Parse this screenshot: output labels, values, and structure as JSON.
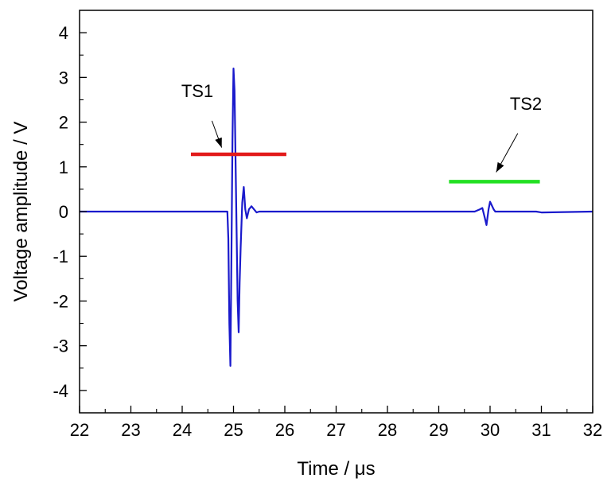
{
  "chart_data": {
    "type": "line",
    "title": "",
    "xlabel": "Time / μs",
    "ylabel": "Voltage amplitude / V",
    "xlim": [
      22,
      32
    ],
    "ylim": [
      -4.5,
      4.5
    ],
    "x_ticks": [
      "22",
      "23",
      "24",
      "25",
      "26",
      "27",
      "28",
      "29",
      "30",
      "31",
      "32"
    ],
    "y_ticks": [
      "-4",
      "-3",
      "-2",
      "-1",
      "0",
      "1",
      "2",
      "3",
      "4"
    ],
    "grid": false,
    "legend": "none",
    "series": [
      {
        "color": "#1a1acc",
        "x": [
          22.0,
          24.88,
          24.9,
          24.92,
          24.94,
          24.96,
          24.98,
          25.0,
          25.02,
          25.05,
          25.08,
          25.1,
          25.12,
          25.14,
          25.17,
          25.2,
          25.23,
          25.26,
          25.3,
          25.35,
          25.4,
          25.45,
          25.5,
          26.0,
          29.7,
          29.8,
          29.85,
          29.9,
          29.93,
          29.97,
          30.0,
          30.03,
          30.07,
          30.1,
          30.2,
          30.9,
          31.0,
          32.0
        ],
        "y": [
          0.0,
          0.0,
          -0.6,
          -2.5,
          -3.45,
          -1.0,
          1.6,
          3.2,
          2.7,
          0.4,
          -2.0,
          -2.7,
          -1.6,
          -0.8,
          0.2,
          0.55,
          0.05,
          -0.15,
          0.05,
          0.12,
          0.05,
          -0.02,
          0.0,
          0.0,
          0.0,
          0.05,
          0.08,
          -0.15,
          -0.3,
          0.05,
          0.22,
          0.15,
          0.05,
          0.0,
          0.0,
          0.0,
          -0.02,
          0.0
        ]
      }
    ],
    "annotations": [
      {
        "label": "TS1",
        "color": "#e21a1a",
        "bar": {
          "x": [
            24.17,
            26.03
          ],
          "y": 1.28
        },
        "arrow": {
          "from": [
            24.58,
            2.03
          ],
          "to": [
            24.77,
            1.43
          ]
        }
      },
      {
        "label": "TS2",
        "color": "#22e022",
        "bar": {
          "x": [
            29.2,
            30.97
          ],
          "y": 0.67
        },
        "arrow": {
          "from": [
            30.54,
            1.75
          ],
          "to": [
            30.12,
            0.88
          ]
        }
      }
    ]
  }
}
